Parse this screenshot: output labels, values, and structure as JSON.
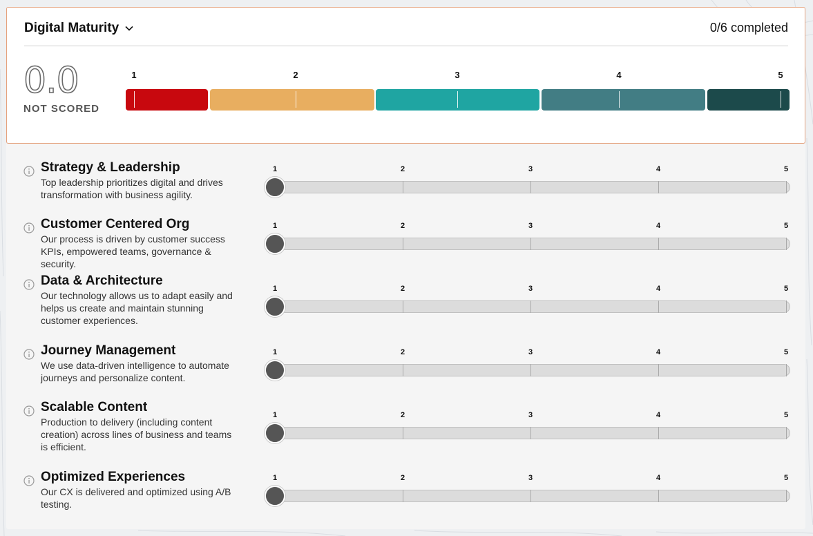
{
  "header": {
    "title": "Digital Maturity",
    "completed": "0/6 completed"
  },
  "overall": {
    "score": "0.0",
    "status": "NOT SCORED"
  },
  "scale": [
    "1",
    "2",
    "3",
    "4",
    "5"
  ],
  "maturity_colors": [
    "#c8080e",
    "#e8ae60",
    "#1fa5a2",
    "#427d84",
    "#1c4a4b"
  ],
  "categories": [
    {
      "title": "Strategy & Leadership",
      "description": "Top leadership prioritizes digital and drives transformation with business agility.",
      "value": 1
    },
    {
      "title": "Customer Centered Org",
      "description": "Our process is driven by customer success KPIs, empowered teams, governance & security.",
      "value": 1
    },
    {
      "title": "Data & Architecture",
      "description": "Our technology allows us to adapt easily and helps us create and maintain stunning customer experiences.",
      "value": 1
    },
    {
      "title": "Journey Management",
      "description": "We use data-driven intelligence to automate journeys and personalize content.",
      "value": 1
    },
    {
      "title": "Scalable Content",
      "description": "Production to delivery (including content creation) across lines of business and teams is efficient.",
      "value": 1
    },
    {
      "title": "Optimized Experiences",
      "description": "Our CX is delivered and optimized using A/B testing.",
      "value": 1
    }
  ]
}
